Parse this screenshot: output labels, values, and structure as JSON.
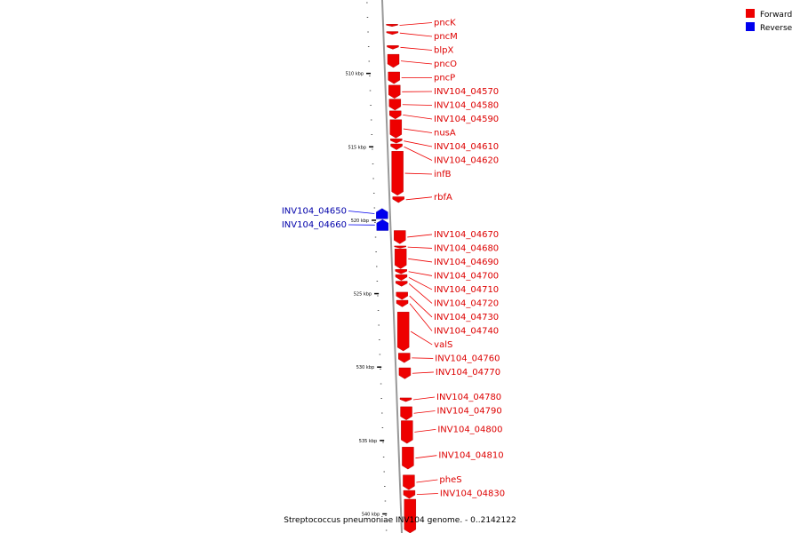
{
  "caption": "Streptococcus pneumoniae INV104 genome. - 0..2142122",
  "legend": [
    {
      "label": "Forward",
      "color": "#ee0000"
    },
    {
      "label": "Reverse",
      "color": "#0000ee"
    }
  ],
  "colors": {
    "forward": "#ee0000",
    "reverse": "#0000ee",
    "backbone": "#999999"
  },
  "view": {
    "start_bp": 505000,
    "end_bp": 541300
  },
  "scale_ticks": [
    {
      "bp": 510000,
      "label": "510 kbp"
    },
    {
      "bp": 515000,
      "label": "515 kbp"
    },
    {
      "bp": 520000,
      "label": "520 kbp"
    },
    {
      "bp": 525000,
      "label": "525 kbp"
    },
    {
      "bp": 530000,
      "label": "530 kbp"
    },
    {
      "bp": 535000,
      "label": "535 kbp"
    },
    {
      "bp": 540000,
      "label": "540 kbp"
    }
  ],
  "genes": [
    {
      "name": "pncK",
      "strand": "forward",
      "start": 506650,
      "end": 506700
    },
    {
      "name": "pncM",
      "strand": "forward",
      "start": 507150,
      "end": 507350
    },
    {
      "name": "blpX",
      "strand": "forward",
      "start": 508100,
      "end": 508350
    },
    {
      "name": "pncO",
      "strand": "forward",
      "start": 508700,
      "end": 509600
    },
    {
      "name": "pncP",
      "strand": "forward",
      "start": 509900,
      "end": 510700
    },
    {
      "name": "INV104_04570",
      "strand": "forward",
      "start": 510800,
      "end": 511700
    },
    {
      "name": "INV104_04580",
      "strand": "forward",
      "start": 511750,
      "end": 512500
    },
    {
      "name": "INV104_04590",
      "strand": "forward",
      "start": 512550,
      "end": 513100
    },
    {
      "name": "nusA",
      "strand": "forward",
      "start": 513150,
      "end": 514400
    },
    {
      "name": "INV104_04610",
      "strand": "forward",
      "start": 514450,
      "end": 514750
    },
    {
      "name": "INV104_04620",
      "strand": "forward",
      "start": 514800,
      "end": 515200
    },
    {
      "name": "infB",
      "strand": "forward",
      "start": 515300,
      "end": 518300
    },
    {
      "name": "rbfA",
      "strand": "forward",
      "start": 518400,
      "end": 518800
    },
    {
      "name": "INV104_04650",
      "strand": "reverse",
      "start": 519200,
      "end": 519900
    },
    {
      "name": "INV104_04660",
      "strand": "reverse",
      "start": 519950,
      "end": 520700
    },
    {
      "name": "INV104_04670",
      "strand": "forward",
      "start": 520700,
      "end": 521600
    },
    {
      "name": "INV104_04680",
      "strand": "forward",
      "start": 521750,
      "end": 521900
    },
    {
      "name": "INV104_04690",
      "strand": "forward",
      "start": 521950,
      "end": 523300
    },
    {
      "name": "INV104_04700",
      "strand": "forward",
      "start": 523350,
      "end": 523650
    },
    {
      "name": "INV104_04710",
      "strand": "forward",
      "start": 523700,
      "end": 524100
    },
    {
      "name": "INV104_04720",
      "strand": "forward",
      "start": 524150,
      "end": 524500
    },
    {
      "name": "INV104_04730",
      "strand": "forward",
      "start": 524900,
      "end": 525400
    },
    {
      "name": "INV104_04740",
      "strand": "forward",
      "start": 525450,
      "end": 525900
    },
    {
      "name": "valS",
      "strand": "forward",
      "start": 526250,
      "end": 528900
    },
    {
      "name": "INV104_04760",
      "strand": "forward",
      "start": 529050,
      "end": 529700
    },
    {
      "name": "INV104_04770",
      "strand": "forward",
      "start": 530050,
      "end": 530800
    },
    {
      "name": "INV104_04780",
      "strand": "forward",
      "start": 532100,
      "end": 532350
    },
    {
      "name": "INV104_04790",
      "strand": "forward",
      "start": 532700,
      "end": 533600
    },
    {
      "name": "INV104_04800",
      "strand": "forward",
      "start": 533650,
      "end": 535200
    },
    {
      "name": "INV104_04810",
      "strand": "forward",
      "start": 535450,
      "end": 536950
    },
    {
      "name": "pheS",
      "strand": "forward",
      "start": 537350,
      "end": 538350
    },
    {
      "name": "INV104_04830",
      "strand": "forward",
      "start": 538400,
      "end": 538950
    },
    {
      "name": "",
      "strand": "forward",
      "start": 539000,
      "end": 541300
    }
  ]
}
